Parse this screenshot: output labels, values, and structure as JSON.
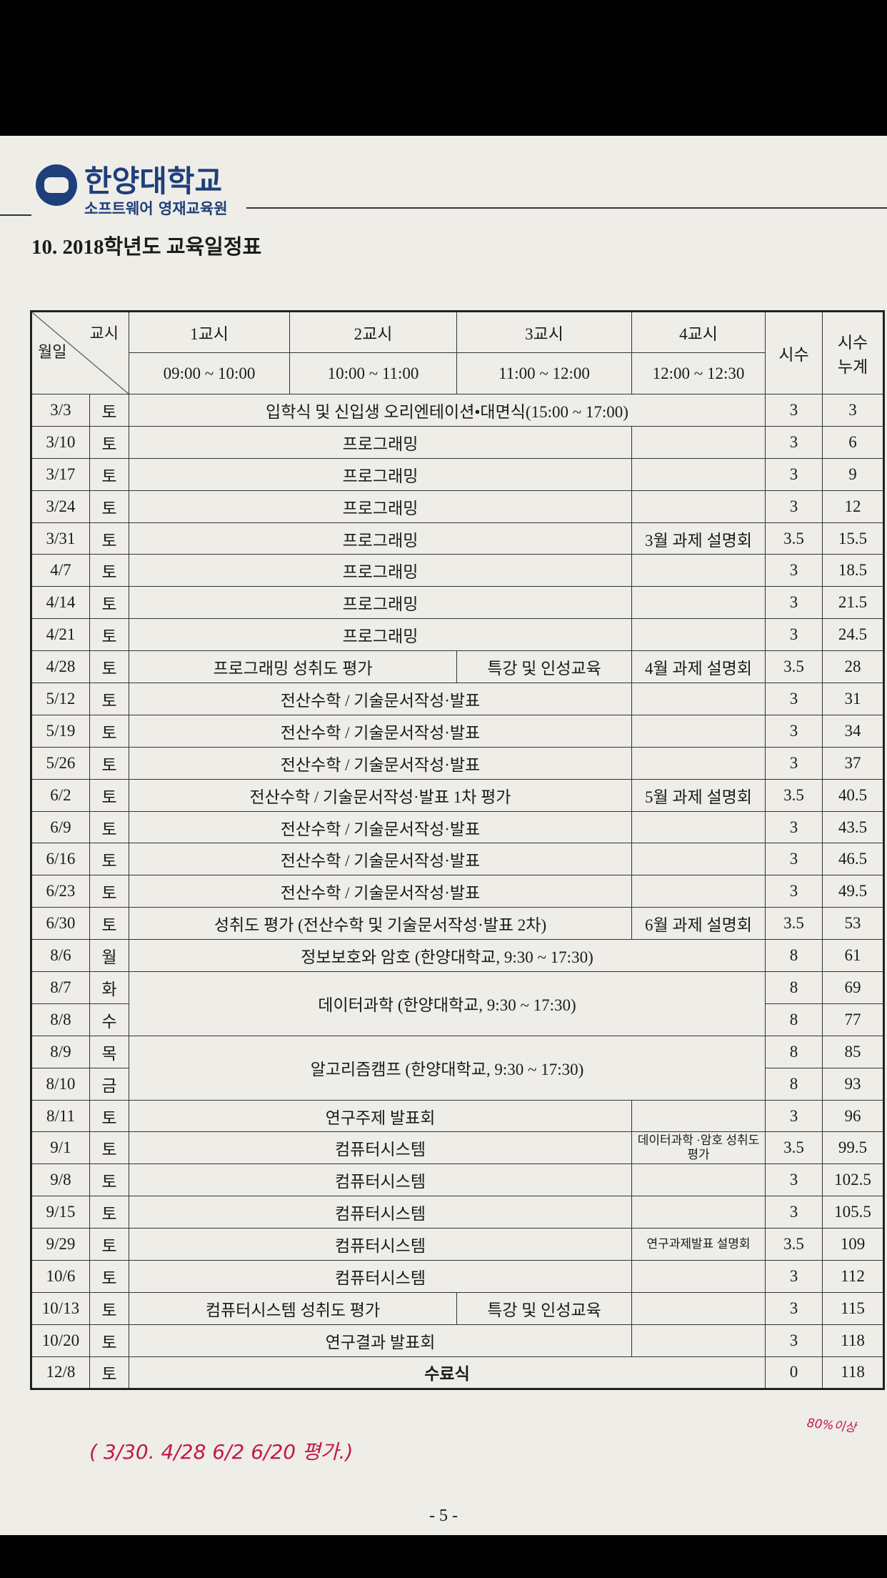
{
  "header": {
    "logo_text": "한양대학교",
    "subtitle": "소프트웨어 영재교육원",
    "title": "10. 2018학년도 교육일정표"
  },
  "table": {
    "corner_top": "교시",
    "corner_bottom": "월일",
    "periods": [
      {
        "name": "1교시",
        "time": "09:00 ~ 10:00"
      },
      {
        "name": "2교시",
        "time": "10:00 ~ 11:00"
      },
      {
        "name": "3교시",
        "time": "11:00 ~ 12:00"
      },
      {
        "name": "4교시",
        "time": "12:00 ~ 12:30"
      }
    ],
    "hours_header": "시수",
    "cumulative_header": [
      "시수",
      "누계"
    ],
    "rows": [
      {
        "date": "3/3",
        "day": "토",
        "activities": [
          {
            "text": "입학식 및 신입생 오리엔테이션•대면식(15:00 ~ 17:00)",
            "cols": 4,
            "rows": 1
          }
        ],
        "hours": 3,
        "cumulative": 3
      },
      {
        "date": "3/10",
        "day": "토",
        "activities": [
          {
            "text": "프로그래밍",
            "cols": 3,
            "rows": 1
          }
        ],
        "hours": 3,
        "cumulative": 6
      },
      {
        "date": "3/17",
        "day": "토",
        "activities": [
          {
            "text": "프로그래밍",
            "cols": 3,
            "rows": 1
          }
        ],
        "hours": 3,
        "cumulative": 9
      },
      {
        "date": "3/24",
        "day": "토",
        "activities": [
          {
            "text": "프로그래밍",
            "cols": 3,
            "rows": 1
          }
        ],
        "hours": 3,
        "cumulative": 12
      },
      {
        "date": "3/31",
        "day": "토",
        "activities": [
          {
            "text": "프로그래밍",
            "cols": 3,
            "rows": 1
          },
          {
            "text": "3월 과제 설명회",
            "cols": 1,
            "rows": 1
          }
        ],
        "hours": 3.5,
        "cumulative": 15.5
      },
      {
        "date": "4/7",
        "day": "토",
        "activities": [
          {
            "text": "프로그래밍",
            "cols": 3,
            "rows": 1
          }
        ],
        "hours": 3,
        "cumulative": 18.5
      },
      {
        "date": "4/14",
        "day": "토",
        "activities": [
          {
            "text": "프로그래밍",
            "cols": 3,
            "rows": 1
          }
        ],
        "hours": 3,
        "cumulative": 21.5
      },
      {
        "date": "4/21",
        "day": "토",
        "activities": [
          {
            "text": "프로그래밍",
            "cols": 3,
            "rows": 1
          }
        ],
        "hours": 3,
        "cumulative": 24.5
      },
      {
        "date": "4/28",
        "day": "토",
        "activities": [
          {
            "text": "프로그래밍 성취도 평가",
            "cols": 2,
            "rows": 1
          },
          {
            "text": "특강 및 인성교육",
            "cols": 1,
            "rows": 1
          },
          {
            "text": "4월 과제 설명회",
            "cols": 1,
            "rows": 1
          }
        ],
        "hours": 3.5,
        "cumulative": 28
      },
      {
        "date": "5/12",
        "day": "토",
        "activities": [
          {
            "text": "전산수학 / 기술문서작성·발표",
            "cols": 3,
            "rows": 1
          }
        ],
        "hours": 3,
        "cumulative": 31
      },
      {
        "date": "5/19",
        "day": "토",
        "activities": [
          {
            "text": "전산수학 / 기술문서작성·발표",
            "cols": 3,
            "rows": 1
          }
        ],
        "hours": 3,
        "cumulative": 34
      },
      {
        "date": "5/26",
        "day": "토",
        "activities": [
          {
            "text": "전산수학 / 기술문서작성·발표",
            "cols": 3,
            "rows": 1
          }
        ],
        "hours": 3,
        "cumulative": 37
      },
      {
        "date": "6/2",
        "day": "토",
        "activities": [
          {
            "text": "전산수학 / 기술문서작성·발표 1차 평가",
            "cols": 3,
            "rows": 1
          },
          {
            "text": "5월 과제 설명회",
            "cols": 1,
            "rows": 1
          }
        ],
        "hours": 3.5,
        "cumulative": 40.5
      },
      {
        "date": "6/9",
        "day": "토",
        "activities": [
          {
            "text": "전산수학 / 기술문서작성·발표",
            "cols": 3,
            "rows": 1
          }
        ],
        "hours": 3,
        "cumulative": 43.5
      },
      {
        "date": "6/16",
        "day": "토",
        "activities": [
          {
            "text": "전산수학 / 기술문서작성·발표",
            "cols": 3,
            "rows": 1
          }
        ],
        "hours": 3,
        "cumulative": 46.5
      },
      {
        "date": "6/23",
        "day": "토",
        "activities": [
          {
            "text": "전산수학 / 기술문서작성·발표",
            "cols": 3,
            "rows": 1
          }
        ],
        "hours": 3,
        "cumulative": 49.5
      },
      {
        "date": "6/30",
        "day": "토",
        "activities": [
          {
            "text": "성취도 평가 (전산수학 및 기술문서작성·발표 2차)",
            "cols": 3,
            "rows": 1
          },
          {
            "text": "6월 과제 설명회",
            "cols": 1,
            "rows": 1
          }
        ],
        "hours": 3.5,
        "cumulative": 53
      },
      {
        "date": "8/6",
        "day": "월",
        "activities": [
          {
            "text": "정보보호와 암호 (한양대학교, 9:30 ~ 17:30)",
            "cols": 4,
            "rows": 1
          }
        ],
        "hours": 8,
        "cumulative": 61
      },
      {
        "date": "8/7",
        "day": "화",
        "activities": [
          {
            "text": "데이터과학 (한양대학교, 9:30 ~ 17:30)",
            "cols": 4,
            "rows": 2
          }
        ],
        "hours": 8,
        "cumulative": 69
      },
      {
        "date": "8/8",
        "day": "수",
        "activities": [],
        "hours": 8,
        "cumulative": 77
      },
      {
        "date": "8/9",
        "day": "목",
        "activities": [
          {
            "text": "알고리즘캠프 (한양대학교, 9:30 ~ 17:30)",
            "cols": 4,
            "rows": 2
          }
        ],
        "hours": 8,
        "cumulative": 85
      },
      {
        "date": "8/10",
        "day": "금",
        "activities": [],
        "hours": 8,
        "cumulative": 93
      },
      {
        "date": "8/11",
        "day": "토",
        "activities": [
          {
            "text": "연구주제 발표회",
            "cols": 3,
            "rows": 1
          }
        ],
        "hours": 3,
        "cumulative": 96
      },
      {
        "date": "9/1",
        "day": "토",
        "activities": [
          {
            "text": "컴퓨터시스템",
            "cols": 3,
            "rows": 1
          },
          {
            "text": "데이터과학 ·암호 성취도평가",
            "cols": 1,
            "rows": 1
          }
        ],
        "hours": 3.5,
        "cumulative": 99.5
      },
      {
        "date": "9/8",
        "day": "토",
        "activities": [
          {
            "text": "컴퓨터시스템",
            "cols": 3,
            "rows": 1
          }
        ],
        "hours": 3,
        "cumulative": 102.5
      },
      {
        "date": "9/15",
        "day": "토",
        "activities": [
          {
            "text": "컴퓨터시스템",
            "cols": 3,
            "rows": 1
          }
        ],
        "hours": 3,
        "cumulative": 105.5
      },
      {
        "date": "9/29",
        "day": "토",
        "activities": [
          {
            "text": "컴퓨터시스템",
            "cols": 3,
            "rows": 1
          },
          {
            "text": "연구과제발표 설명회",
            "cols": 1,
            "rows": 1
          }
        ],
        "hours": 3.5,
        "cumulative": 109
      },
      {
        "date": "10/6",
        "day": "토",
        "activities": [
          {
            "text": "컴퓨터시스템",
            "cols": 3,
            "rows": 1
          }
        ],
        "hours": 3,
        "cumulative": 112
      },
      {
        "date": "10/13",
        "day": "토",
        "activities": [
          {
            "text": "컴퓨터시스템 성취도 평가",
            "cols": 2,
            "rows": 1
          },
          {
            "text": "특강 및 인성교육",
            "cols": 1,
            "rows": 1
          }
        ],
        "hours": 3,
        "cumulative": 115
      },
      {
        "date": "10/20",
        "day": "토",
        "activities": [
          {
            "text": "연구결과 발표회",
            "cols": 3,
            "rows": 1
          }
        ],
        "hours": 3,
        "cumulative": 118
      },
      {
        "date": "12/8",
        "day": "토",
        "activities": [
          {
            "text": "수료식",
            "cols": 4,
            "rows": 1
          }
        ],
        "hours": 0,
        "cumulative": 118
      }
    ]
  },
  "handwritten": {
    "note": "( 3/30. 4/28  6/2  6/20 평가.)",
    "threshold": "80%이상"
  },
  "footer": {
    "page_number": "- 5 -"
  }
}
